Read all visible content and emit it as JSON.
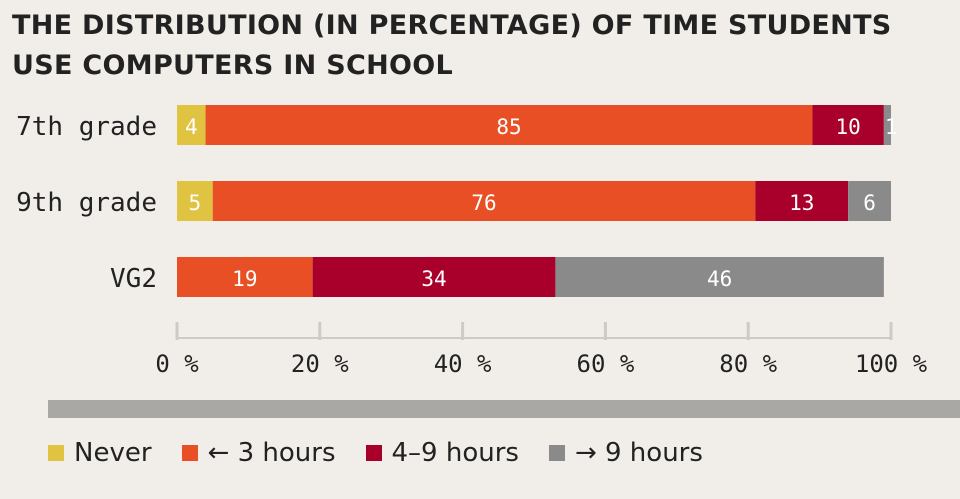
{
  "chart_data": {
    "type": "bar",
    "orientation": "horizontal",
    "stacked": true,
    "title": "THE DISTRIBUTION (IN PERCENTAGE) OF TIME STUDENTS USE COMPUTERS IN SCHOOL",
    "categories": [
      "7th grade",
      "9th grade",
      "VG2"
    ],
    "series": [
      {
        "name": "Never",
        "color": "#e0c341",
        "values": [
          4,
          5,
          0
        ],
        "labels": [
          "4",
          "5",
          ""
        ]
      },
      {
        "name": "← 3 hours",
        "color": "#e84f25",
        "values": [
          85,
          76,
          19
        ],
        "labels": [
          "85",
          "76",
          "19"
        ]
      },
      {
        "name": "4–9 hours",
        "color": "#a8002b",
        "values": [
          10,
          13,
          34
        ],
        "labels": [
          "10",
          "13",
          "34"
        ]
      },
      {
        "name": "→ 9 hours",
        "color": "#8a8a8a",
        "values": [
          1,
          6,
          46
        ],
        "labels": [
          "1",
          "6",
          "46"
        ]
      }
    ],
    "xlim": [
      0,
      100
    ],
    "x_ticks": [
      "0 %",
      "20 %",
      "40 %",
      "60 %",
      "80 %",
      "100 %"
    ],
    "legend_position": "bottom"
  }
}
